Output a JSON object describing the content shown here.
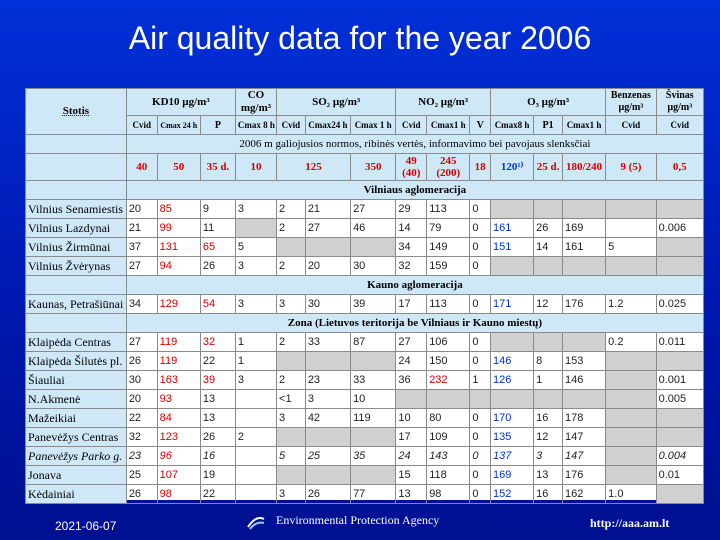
{
  "title": "Air quality data for the year 2006",
  "header": {
    "station": "Stotis",
    "kd10": "KD10 µg/m³",
    "co": "CO mg/m³",
    "so2": "SO₂ µg/m³",
    "no2": "NO₂ µg/m³",
    "o3": "O₃ µg/m³",
    "benzenas": "Benzenas µg/m³",
    "svinas": "Švinas µg/m³",
    "sub": [
      "Cvid",
      "Cmax 24 h",
      "P",
      "Cmax 8 h",
      "Cvid",
      "Cmax24 h",
      "Cmax 1 h",
      "Cvid",
      "Cmax1 h",
      "V",
      "Cmax8 h",
      "P1",
      "Cmax1 h",
      "Cvid",
      "Cvid"
    ],
    "norms_label": "2006 m galiojusios normos, ribinės vertės, informavimo bei pavojaus slenksčiai",
    "norms": [
      "40",
      "50",
      "35 d.",
      "10",
      "125",
      "350",
      "49 (40)",
      "245 (200)",
      "18",
      "120¹⁾",
      "25 d.",
      "180/240",
      "9 (5)",
      "0,5"
    ]
  },
  "sections": {
    "vilnius": "Vilniaus aglomeracija",
    "kaunas": "Kauno aglomeracija",
    "zona": "Zona (Lietuvos teritorija be Vilniaus ir Kauno miestų)"
  },
  "rows": [
    {
      "name": "Vilnius Senamiestis",
      "v": [
        "20",
        "85",
        "9",
        "3",
        "2",
        "21",
        "27",
        "29",
        "113",
        "0",
        "",
        "",
        "",
        "",
        ""
      ]
    },
    {
      "name": "Vilnius Lazdynai",
      "v": [
        "21",
        "99",
        "11",
        "",
        "2",
        "27",
        "46",
        "14",
        "79",
        "0",
        "161",
        "26",
        "169",
        "",
        "0.006"
      ]
    },
    {
      "name": "Vilnius Žirmūnai",
      "v": [
        "37",
        "131",
        "65",
        "5",
        "",
        "",
        "",
        "34",
        "149",
        "0",
        "151",
        "14",
        "161",
        "5",
        ""
      ]
    },
    {
      "name": "Vilnius Žvėrynas",
      "v": [
        "27",
        "94",
        "26",
        "3",
        "2",
        "20",
        "30",
        "32",
        "159",
        "0",
        "",
        "",
        "",
        "",
        ""
      ]
    },
    {
      "name": "Kaunas, Petrašiūnai",
      "v": [
        "34",
        "129",
        "54",
        "3",
        "3",
        "30",
        "39",
        "17",
        "113",
        "0",
        "171",
        "12",
        "176",
        "1.2",
        "0.025"
      ]
    },
    {
      "name": "Klaipėda Centras",
      "v": [
        "27",
        "119",
        "32",
        "1",
        "2",
        "33",
        "87",
        "27",
        "106",
        "0",
        "",
        "",
        "",
        "0.2",
        "0.011"
      ]
    },
    {
      "name": "Klaipėda Šilutės pl.",
      "v": [
        "26",
        "119",
        "22",
        "1",
        "",
        "",
        "",
        "24",
        "150",
        "0",
        "146",
        "8",
        "153",
        "",
        ""
      ]
    },
    {
      "name": "Šiauliai",
      "v": [
        "30",
        "163",
        "39",
        "3",
        "2",
        "23",
        "33",
        "36",
        "232",
        "1",
        "126",
        "1",
        "146",
        "",
        "0.001"
      ]
    },
    {
      "name": "N.Akmenė",
      "v": [
        "20",
        "93",
        "13",
        "",
        "<1",
        "3",
        "10",
        "",
        "",
        "",
        "",
        "",
        "",
        "",
        "0.005"
      ]
    },
    {
      "name": "Mažeikiai",
      "v": [
        "22",
        "84",
        "13",
        "",
        "3",
        "42",
        "119",
        "10",
        "80",
        "0",
        "170",
        "16",
        "178",
        "",
        ""
      ]
    },
    {
      "name": "Panevėžys Centras",
      "v": [
        "32",
        "123",
        "26",
        "2",
        "",
        "",
        "",
        "17",
        "109",
        "0",
        "135",
        "12",
        "147",
        "",
        ""
      ]
    },
    {
      "name": "Panevėžys Parko g.",
      "v": [
        "23",
        "96",
        "16",
        "",
        "5",
        "25",
        "35",
        "24",
        "143",
        "0",
        "137",
        "3",
        "147",
        "",
        "0.004"
      ]
    },
    {
      "name": "Jonava",
      "v": [
        "25",
        "107",
        "19",
        "",
        "",
        "",
        "",
        "15",
        "118",
        "0",
        "169",
        "13",
        "176",
        "",
        "0.01"
      ]
    },
    {
      "name": "Kėdainiai",
      "v": [
        "26",
        "98",
        "22",
        "",
        "3",
        "26",
        "77",
        "13",
        "98",
        "0",
        "152",
        "16",
        "162",
        "1.0",
        ""
      ]
    }
  ],
  "footer": {
    "date": "2021-06-07",
    "agency": "Environmental Protection Agency",
    "url": "http://aaa.am.lt"
  },
  "colors": {
    "background": "#0020c0",
    "header_fill": "#cfe8f7",
    "exceed": "#d40000",
    "ozone": "#0033cc"
  }
}
